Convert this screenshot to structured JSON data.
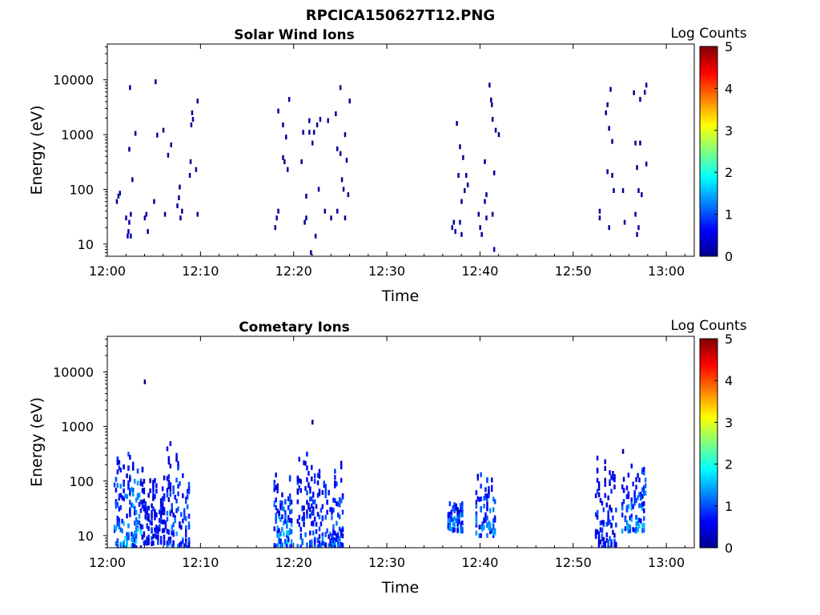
{
  "figure": {
    "title": "RPCICA150627T12.PNG"
  },
  "colorbar": {
    "label": "Log Counts",
    "range": [
      0,
      5
    ],
    "ticks": [
      "0",
      "1",
      "2",
      "3",
      "4",
      "5"
    ],
    "colormap": "jet"
  },
  "chart_data": [
    {
      "type": "heatmap",
      "title": "Solar Wind Ions",
      "xlabel": "Time",
      "ylabel": "Energy (eV)",
      "xlim": [
        "12:00",
        "13:03"
      ],
      "ylim": [
        6,
        45000
      ],
      "yscale": "log",
      "x_ticks": [
        "12:00",
        "12:10",
        "12:20",
        "12:30",
        "12:40",
        "12:50",
        "13:00"
      ],
      "y_ticks": [
        "10",
        "100",
        "1000",
        "10000"
      ],
      "z_label": "Log Counts",
      "points": [
        {
          "t": "12:01:00",
          "e": 60,
          "z": 0.1
        },
        {
          "t": "12:01:10",
          "e": 75,
          "z": 0.1
        },
        {
          "t": "12:01:20",
          "e": 85,
          "z": 0.1
        },
        {
          "t": "12:02:00",
          "e": 30,
          "z": 0.2
        },
        {
          "t": "12:02:10",
          "e": 14,
          "z": 0.3
        },
        {
          "t": "12:02:15",
          "e": 17,
          "z": 0.3
        },
        {
          "t": "12:02:20",
          "e": 540,
          "z": 0.1
        },
        {
          "t": "12:02:20",
          "e": 25,
          "z": 0.2
        },
        {
          "t": "12:02:25",
          "e": 7200,
          "z": 0.1
        },
        {
          "t": "12:02:30",
          "e": 35,
          "z": 0.3
        },
        {
          "t": "12:02:30",
          "e": 14,
          "z": 0.3
        },
        {
          "t": "12:02:40",
          "e": 150,
          "z": 0.1
        },
        {
          "t": "12:03:00",
          "e": 1050,
          "z": 0.1
        },
        {
          "t": "12:04:00",
          "e": 30,
          "z": 0.2
        },
        {
          "t": "12:04:10",
          "e": 35,
          "z": 0.2
        },
        {
          "t": "12:04:20",
          "e": 17,
          "z": 0.2
        },
        {
          "t": "12:05:00",
          "e": 60,
          "z": 0.1
        },
        {
          "t": "12:05:10",
          "e": 9200,
          "z": 0.1
        },
        {
          "t": "12:05:20",
          "e": 980,
          "z": 0.1
        },
        {
          "t": "12:06:00",
          "e": 1200,
          "z": 0.1
        },
        {
          "t": "12:06:10",
          "e": 35,
          "z": 0.1
        },
        {
          "t": "12:06:30",
          "e": 420,
          "z": 0.1
        },
        {
          "t": "12:06:50",
          "e": 650,
          "z": 0.1
        },
        {
          "t": "12:07:30",
          "e": 50,
          "z": 0.2
        },
        {
          "t": "12:07:40",
          "e": 70,
          "z": 0.2
        },
        {
          "t": "12:07:45",
          "e": 110,
          "z": 0.1
        },
        {
          "t": "12:07:50",
          "e": 30,
          "z": 0.2
        },
        {
          "t": "12:08:00",
          "e": 40,
          "z": 0.1
        },
        {
          "t": "12:08:50",
          "e": 180,
          "z": 0.1
        },
        {
          "t": "12:08:55",
          "e": 320,
          "z": 0.1
        },
        {
          "t": "12:09:00",
          "e": 1500,
          "z": 0.1
        },
        {
          "t": "12:09:05",
          "e": 2500,
          "z": 0.1
        },
        {
          "t": "12:09:10",
          "e": 1900,
          "z": 0.1
        },
        {
          "t": "12:09:30",
          "e": 230,
          "z": 0.1
        },
        {
          "t": "12:09:40",
          "e": 4100,
          "z": 0.1
        },
        {
          "t": "12:09:40",
          "e": 35,
          "z": 0.1
        },
        {
          "t": "12:18:00",
          "e": 20,
          "z": 0.2
        },
        {
          "t": "12:18:10",
          "e": 30,
          "z": 0.2
        },
        {
          "t": "12:18:20",
          "e": 40,
          "z": 0.1
        },
        {
          "t": "12:18:20",
          "e": 2700,
          "z": 0.1
        },
        {
          "t": "12:18:50",
          "e": 1500,
          "z": 0.1
        },
        {
          "t": "12:18:50",
          "e": 380,
          "z": 0.1
        },
        {
          "t": "12:19:00",
          "e": 320,
          "z": 0.1
        },
        {
          "t": "12:19:10",
          "e": 900,
          "z": 0.1
        },
        {
          "t": "12:19:20",
          "e": 230,
          "z": 0.1
        },
        {
          "t": "12:19:30",
          "e": 4400,
          "z": 0.1
        },
        {
          "t": "12:20:50",
          "e": 320,
          "z": 0.1
        },
        {
          "t": "12:21:00",
          "e": 1100,
          "z": 0.1
        },
        {
          "t": "12:21:10",
          "e": 25,
          "z": 0.1
        },
        {
          "t": "12:21:20",
          "e": 75,
          "z": 0.1
        },
        {
          "t": "12:21:20",
          "e": 30,
          "z": 0.1
        },
        {
          "t": "12:21:40",
          "e": 1100,
          "z": 0.1
        },
        {
          "t": "12:21:40",
          "e": 1800,
          "z": 0.1
        },
        {
          "t": "12:21:50",
          "e": 7,
          "z": 0.2
        },
        {
          "t": "12:22:00",
          "e": 700,
          "z": 0.1
        },
        {
          "t": "12:22:10",
          "e": 1100,
          "z": 0.1
        },
        {
          "t": "12:22:20",
          "e": 14,
          "z": 0.1
        },
        {
          "t": "12:22:30",
          "e": 1500,
          "z": 0.1
        },
        {
          "t": "12:22:40",
          "e": 100,
          "z": 0.1
        },
        {
          "t": "12:22:50",
          "e": 1900,
          "z": 0.1
        },
        {
          "t": "12:23:20",
          "e": 40,
          "z": 0.1
        },
        {
          "t": "12:23:40",
          "e": 1800,
          "z": 0.1
        },
        {
          "t": "12:24:00",
          "e": 30,
          "z": 0.1
        },
        {
          "t": "12:24:30",
          "e": 2400,
          "z": 0.1
        },
        {
          "t": "12:24:40",
          "e": 550,
          "z": 0.1
        },
        {
          "t": "12:24:40",
          "e": 40,
          "z": 0.1
        },
        {
          "t": "12:25:00",
          "e": 7200,
          "z": 0.1
        },
        {
          "t": "12:25:00",
          "e": 450,
          "z": 0.1
        },
        {
          "t": "12:25:10",
          "e": 150,
          "z": 0.1
        },
        {
          "t": "12:25:20",
          "e": 100,
          "z": 0.1
        },
        {
          "t": "12:25:30",
          "e": 30,
          "z": 0.1
        },
        {
          "t": "12:25:30",
          "e": 1000,
          "z": 0.1
        },
        {
          "t": "12:25:40",
          "e": 340,
          "z": 0.1
        },
        {
          "t": "12:25:50",
          "e": 80,
          "z": 0.1
        },
        {
          "t": "12:26:00",
          "e": 4100,
          "z": 0.1
        },
        {
          "t": "12:37:00",
          "e": 20,
          "z": 0.2
        },
        {
          "t": "12:37:10",
          "e": 25,
          "z": 0.3
        },
        {
          "t": "12:37:20",
          "e": 17,
          "z": 0.3
        },
        {
          "t": "12:37:30",
          "e": 1600,
          "z": 0.1
        },
        {
          "t": "12:37:40",
          "e": 180,
          "z": 0.1
        },
        {
          "t": "12:37:50",
          "e": 25,
          "z": 0.2
        },
        {
          "t": "12:37:50",
          "e": 600,
          "z": 0.1
        },
        {
          "t": "12:38:00",
          "e": 60,
          "z": 0.1
        },
        {
          "t": "12:38:00",
          "e": 15,
          "z": 0.2
        },
        {
          "t": "12:38:10",
          "e": 380,
          "z": 0.1
        },
        {
          "t": "12:38:20",
          "e": 95,
          "z": 0.1
        },
        {
          "t": "12:38:30",
          "e": 180,
          "z": 0.1
        },
        {
          "t": "12:38:40",
          "e": 120,
          "z": 0.1
        },
        {
          "t": "12:39:50",
          "e": 35,
          "z": 0.1
        },
        {
          "t": "12:40:00",
          "e": 20,
          "z": 0.1
        },
        {
          "t": "12:40:10",
          "e": 15,
          "z": 0.1
        },
        {
          "t": "12:40:30",
          "e": 60,
          "z": 0.2
        },
        {
          "t": "12:40:30",
          "e": 320,
          "z": 0.1
        },
        {
          "t": "12:40:40",
          "e": 30,
          "z": 0.2
        },
        {
          "t": "12:40:40",
          "e": 80,
          "z": 0.2
        },
        {
          "t": "12:41:00",
          "e": 8000,
          "z": 0.1
        },
        {
          "t": "12:41:10",
          "e": 4300,
          "z": 0.1
        },
        {
          "t": "12:41:15",
          "e": 3500,
          "z": 0.1
        },
        {
          "t": "12:41:20",
          "e": 1900,
          "z": 0.1
        },
        {
          "t": "12:41:20",
          "e": 35,
          "z": 0.1
        },
        {
          "t": "12:41:30",
          "e": 200,
          "z": 0.1
        },
        {
          "t": "12:41:30",
          "e": 8,
          "z": 0.2
        },
        {
          "t": "12:41:40",
          "e": 1200,
          "z": 0.1
        },
        {
          "t": "12:42:00",
          "e": 1000,
          "z": 0.1
        },
        {
          "t": "12:52:50",
          "e": 30,
          "z": 0.2
        },
        {
          "t": "12:52:50",
          "e": 40,
          "z": 0.2
        },
        {
          "t": "12:53:30",
          "e": 2500,
          "z": 0.1
        },
        {
          "t": "12:53:40",
          "e": 3500,
          "z": 0.1
        },
        {
          "t": "12:53:40",
          "e": 210,
          "z": 0.1
        },
        {
          "t": "12:53:50",
          "e": 20,
          "z": 0.2
        },
        {
          "t": "12:53:50",
          "e": 1300,
          "z": 0.1
        },
        {
          "t": "12:54:00",
          "e": 6700,
          "z": 0.1
        },
        {
          "t": "12:54:10",
          "e": 750,
          "z": 0.1
        },
        {
          "t": "12:54:10",
          "e": 180,
          "z": 0.1
        },
        {
          "t": "12:54:20",
          "e": 95,
          "z": 0.1
        },
        {
          "t": "12:55:20",
          "e": 95,
          "z": 0.1
        },
        {
          "t": "12:55:30",
          "e": 25,
          "z": 0.2
        },
        {
          "t": "12:56:30",
          "e": 5800,
          "z": 0.1
        },
        {
          "t": "12:56:40",
          "e": 35,
          "z": 0.2
        },
        {
          "t": "12:56:40",
          "e": 700,
          "z": 0.1
        },
        {
          "t": "12:56:50",
          "e": 250,
          "z": 0.1
        },
        {
          "t": "12:56:50",
          "e": 15,
          "z": 0.2
        },
        {
          "t": "12:57:00",
          "e": 95,
          "z": 0.1
        },
        {
          "t": "12:57:00",
          "e": 20,
          "z": 0.2
        },
        {
          "t": "12:57:10",
          "e": 4400,
          "z": 0.1
        },
        {
          "t": "12:57:10",
          "e": 700,
          "z": 0.1
        },
        {
          "t": "12:57:20",
          "e": 80,
          "z": 0.1
        },
        {
          "t": "12:57:40",
          "e": 5900,
          "z": 0.1
        },
        {
          "t": "12:57:50",
          "e": 8000,
          "z": 0.1
        },
        {
          "t": "12:57:50",
          "e": 290,
          "z": 0.1
        }
      ]
    },
    {
      "type": "heatmap",
      "title": "Cometary Ions",
      "xlabel": "Time",
      "ylabel": "Energy (eV)",
      "xlim": [
        "12:00",
        "13:03"
      ],
      "ylim": [
        6,
        45000
      ],
      "yscale": "log",
      "x_ticks": [
        "12:00",
        "12:10",
        "12:20",
        "12:30",
        "12:40",
        "12:50",
        "13:00"
      ],
      "y_ticks": [
        "10",
        "100",
        "1000",
        "10000"
      ],
      "z_label": "Log Counts",
      "clusters": [
        {
          "t0": "12:00:40",
          "t1": "12:03:40",
          "e_min": 6,
          "e_max": 450,
          "z_peak": 2.0
        },
        {
          "t0": "12:03:40",
          "t1": "12:06:20",
          "e_min": 7,
          "e_max": 250,
          "z_peak": 1.2
        },
        {
          "t0": "12:06:20",
          "t1": "12:08:50",
          "e_min": 6,
          "e_max": 500,
          "z_peak": 1.6
        },
        {
          "t0": "12:17:50",
          "t1": "12:19:50",
          "e_min": 6,
          "e_max": 240,
          "z_peak": 1.8
        },
        {
          "t0": "12:20:20",
          "t1": "12:23:00",
          "e_min": 6,
          "e_max": 1200,
          "z_peak": 1.3
        },
        {
          "t0": "12:23:00",
          "t1": "12:25:20",
          "e_min": 6,
          "e_max": 300,
          "z_peak": 1.5
        },
        {
          "t0": "12:36:30",
          "t1": "12:38:10",
          "e_min": 12,
          "e_max": 45,
          "z_peak": 1.9
        },
        {
          "t0": "12:39:30",
          "t1": "12:41:40",
          "e_min": 10,
          "e_max": 250,
          "z_peak": 1.7
        },
        {
          "t0": "12:52:20",
          "t1": "12:54:40",
          "e_min": 6,
          "e_max": 300,
          "z_peak": 1.3
        },
        {
          "t0": "12:55:10",
          "t1": "12:57:50",
          "e_min": 12,
          "e_max": 350,
          "z_peak": 1.8
        }
      ],
      "points": [
        {
          "t": "12:04:00",
          "e": 6600,
          "z": 0.1
        },
        {
          "t": "12:22:00",
          "e": 1200,
          "z": 0.1
        },
        {
          "t": "12:55:20",
          "e": 350,
          "z": 0.1
        }
      ]
    }
  ]
}
